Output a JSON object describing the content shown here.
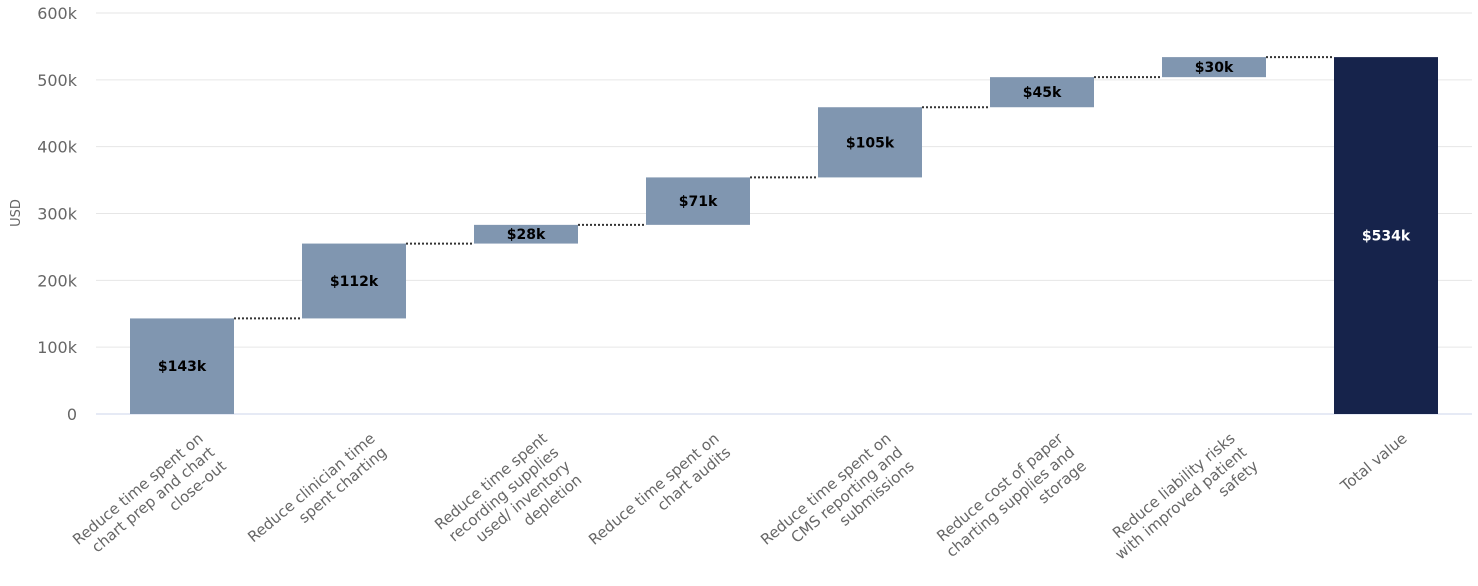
{
  "chart_data": {
    "type": "bar",
    "subtype": "waterfall",
    "title": "",
    "xlabel": "",
    "ylabel": "USD",
    "ylim": [
      0,
      600000
    ],
    "y_ticks": [
      {
        "value": 0,
        "label": "0"
      },
      {
        "value": 100000,
        "label": "100k"
      },
      {
        "value": 200000,
        "label": "200k"
      },
      {
        "value": 300000,
        "label": "300k"
      },
      {
        "value": 400000,
        "label": "400k"
      },
      {
        "value": 500000,
        "label": "500k"
      },
      {
        "value": 600000,
        "label": "600k"
      }
    ],
    "grid": true,
    "legend": "none",
    "colors": {
      "increment": "#8096b0",
      "total": "#16234b",
      "increment_label": "#000000",
      "total_label": "#ffffff"
    },
    "categories": [
      {
        "lines": [
          "Reduce time spent on",
          "chart prep and chart",
          "close-out"
        ],
        "value": 143000,
        "label": "$143k",
        "is_total": false
      },
      {
        "lines": [
          "Reduce clinician time",
          "spent charting"
        ],
        "value": 112000,
        "label": "$112k",
        "is_total": false
      },
      {
        "lines": [
          "Reduce time spent",
          "recording supplies",
          "used/ inventory",
          "depletion"
        ],
        "value": 28000,
        "label": "$28k",
        "is_total": false
      },
      {
        "lines": [
          "Reduce time spent on",
          "chart audits"
        ],
        "value": 71000,
        "label": "$71k",
        "is_total": false
      },
      {
        "lines": [
          "Reduce time spent on",
          "CMS reporting and",
          "submissions"
        ],
        "value": 105000,
        "label": "$105k",
        "is_total": false
      },
      {
        "lines": [
          "Reduce cost of paper",
          "charting supplies and",
          "storage"
        ],
        "value": 45000,
        "label": "$45k",
        "is_total": false
      },
      {
        "lines": [
          "Reduce liability risks",
          "with improved patient",
          "safety"
        ],
        "value": 30000,
        "label": "$30k",
        "is_total": false
      },
      {
        "lines": [
          "Total value"
        ],
        "value": 534000,
        "label": "$534k",
        "is_total": true
      }
    ]
  }
}
